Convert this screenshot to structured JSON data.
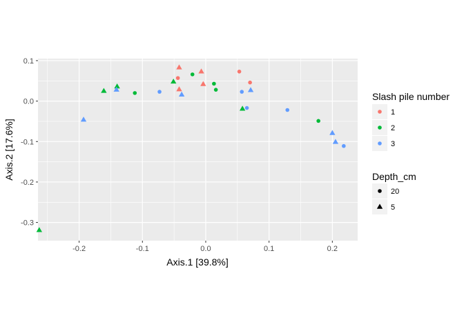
{
  "chart_data": {
    "type": "scatter",
    "xlabel": "Axis.1   [39.8%]",
    "ylabel": "Axis.2   [17.6%]",
    "xlim": [
      -0.265,
      0.24
    ],
    "ylim": [
      -0.345,
      0.105
    ],
    "x_ticks": [
      -0.2,
      -0.1,
      0.0,
      0.1,
      0.2
    ],
    "x_tick_labels": [
      "-0.2",
      "-0.1",
      "0.0",
      "0.1",
      "0.2"
    ],
    "y_ticks": [
      0.1,
      0.0,
      -0.1,
      -0.2,
      -0.3
    ],
    "y_tick_labels": [
      "0.1",
      "0.0",
      "-0.1",
      "-0.2",
      "-0.3"
    ],
    "grid": true,
    "legend_position": "right",
    "color_legend": {
      "title": "Slash pile number",
      "entries": [
        {
          "label": "1",
          "color": "#F8766D"
        },
        {
          "label": "2",
          "color": "#00BA38"
        },
        {
          "label": "3",
          "color": "#619CFF"
        }
      ]
    },
    "shape_legend": {
      "title": "Depth_cm",
      "entries": [
        {
          "label": "20",
          "shape": "circle"
        },
        {
          "label": "5",
          "shape": "triangle"
        }
      ]
    },
    "points": [
      {
        "x": -0.042,
        "y": 0.083,
        "pile": "1",
        "depth": "5"
      },
      {
        "x": -0.044,
        "y": 0.057,
        "pile": "1",
        "depth": "20"
      },
      {
        "x": -0.042,
        "y": 0.029,
        "pile": "1",
        "depth": "5"
      },
      {
        "x": -0.007,
        "y": 0.073,
        "pile": "1",
        "depth": "5"
      },
      {
        "x": -0.004,
        "y": 0.042,
        "pile": "1",
        "depth": "5"
      },
      {
        "x": 0.053,
        "y": 0.073,
        "pile": "1",
        "depth": "20"
      },
      {
        "x": 0.07,
        "y": 0.046,
        "pile": "1",
        "depth": "20"
      },
      {
        "x": -0.263,
        "y": -0.319,
        "pile": "2",
        "depth": "5"
      },
      {
        "x": -0.161,
        "y": 0.025,
        "pile": "2",
        "depth": "5"
      },
      {
        "x": -0.14,
        "y": 0.036,
        "pile": "2",
        "depth": "5"
      },
      {
        "x": -0.112,
        "y": 0.02,
        "pile": "2",
        "depth": "20"
      },
      {
        "x": -0.051,
        "y": 0.048,
        "pile": "2",
        "depth": "5"
      },
      {
        "x": -0.021,
        "y": 0.066,
        "pile": "2",
        "depth": "20"
      },
      {
        "x": 0.013,
        "y": 0.043,
        "pile": "2",
        "depth": "20"
      },
      {
        "x": 0.016,
        "y": 0.028,
        "pile": "2",
        "depth": "20"
      },
      {
        "x": 0.058,
        "y": -0.019,
        "pile": "2",
        "depth": "5"
      },
      {
        "x": 0.178,
        "y": -0.049,
        "pile": "2",
        "depth": "20"
      },
      {
        "x": -0.193,
        "y": -0.046,
        "pile": "3",
        "depth": "5"
      },
      {
        "x": -0.141,
        "y": 0.028,
        "pile": "3",
        "depth": "5"
      },
      {
        "x": -0.073,
        "y": 0.023,
        "pile": "3",
        "depth": "20"
      },
      {
        "x": -0.038,
        "y": 0.016,
        "pile": "3",
        "depth": "5"
      },
      {
        "x": 0.057,
        "y": 0.023,
        "pile": "3",
        "depth": "20"
      },
      {
        "x": 0.065,
        "y": -0.017,
        "pile": "3",
        "depth": "20"
      },
      {
        "x": 0.071,
        "y": 0.027,
        "pile": "3",
        "depth": "5"
      },
      {
        "x": 0.129,
        "y": -0.022,
        "pile": "3",
        "depth": "20"
      },
      {
        "x": 0.2,
        "y": -0.079,
        "pile": "3",
        "depth": "5"
      },
      {
        "x": 0.205,
        "y": -0.101,
        "pile": "3",
        "depth": "5"
      },
      {
        "x": 0.218,
        "y": -0.111,
        "pile": "3",
        "depth": "20"
      }
    ]
  }
}
